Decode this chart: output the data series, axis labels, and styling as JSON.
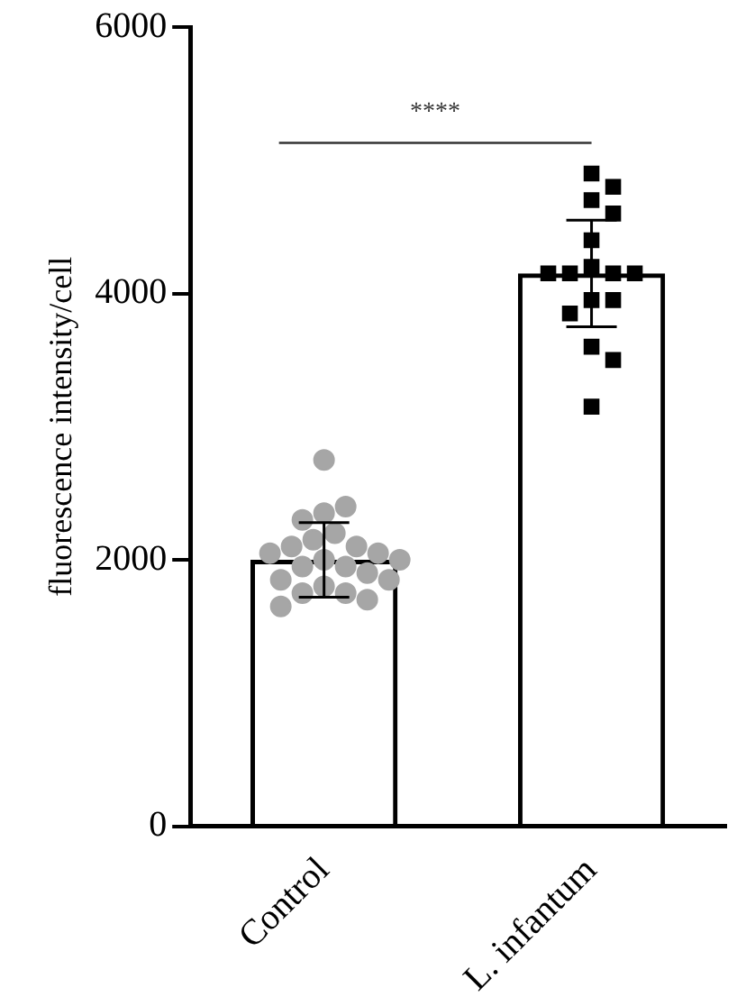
{
  "chart_data": {
    "type": "bar",
    "ylabel": "fluorescence intensity/cell",
    "categories": [
      "Control",
      "L. infantum"
    ],
    "ylim": [
      0,
      6000
    ],
    "yticks": [
      0,
      2000,
      4000,
      6000
    ],
    "grid": false,
    "legend": false,
    "annotations": [
      "****"
    ],
    "series": [
      {
        "color": "#000000",
        "values": [
          2000,
          4150
        ],
        "errors": [
          280,
          400
        ]
      },
      {
        "type": "scatter",
        "marker": "circle",
        "color": "#a6a6a6",
        "x": [
          "Control",
          "Control",
          "Control",
          "Control",
          "Control",
          "Control",
          "Control",
          "Control",
          "Control",
          "Control",
          "Control",
          "Control",
          "Control",
          "Control",
          "Control",
          "Control",
          "Control",
          "Control",
          "Control",
          "Control",
          "Control",
          "Control"
        ],
        "values": [
          2750,
          2350,
          2400,
          2300,
          2200,
          2150,
          2100,
          2100,
          2050,
          2050,
          2000,
          2000,
          1950,
          1950,
          1900,
          1850,
          1850,
          1800,
          1750,
          1750,
          1700,
          1650
        ]
      },
      {
        "type": "scatter",
        "marker": "square",
        "color": "#000000",
        "x": [
          "L. infantum",
          "L. infantum",
          "L. infantum",
          "L. infantum",
          "L. infantum",
          "L. infantum",
          "L. infantum",
          "L. infantum",
          "L. infantum",
          "L. infantum",
          "L. infantum",
          "L. infantum",
          "L. infantum",
          "L. infantum",
          "L. infantum",
          "L. infantum"
        ],
        "values": [
          4900,
          4800,
          4700,
          4600,
          4400,
          4200,
          4150,
          4150,
          4150,
          4150,
          3950,
          3950,
          3850,
          3600,
          3500,
          3150
        ]
      }
    ]
  }
}
